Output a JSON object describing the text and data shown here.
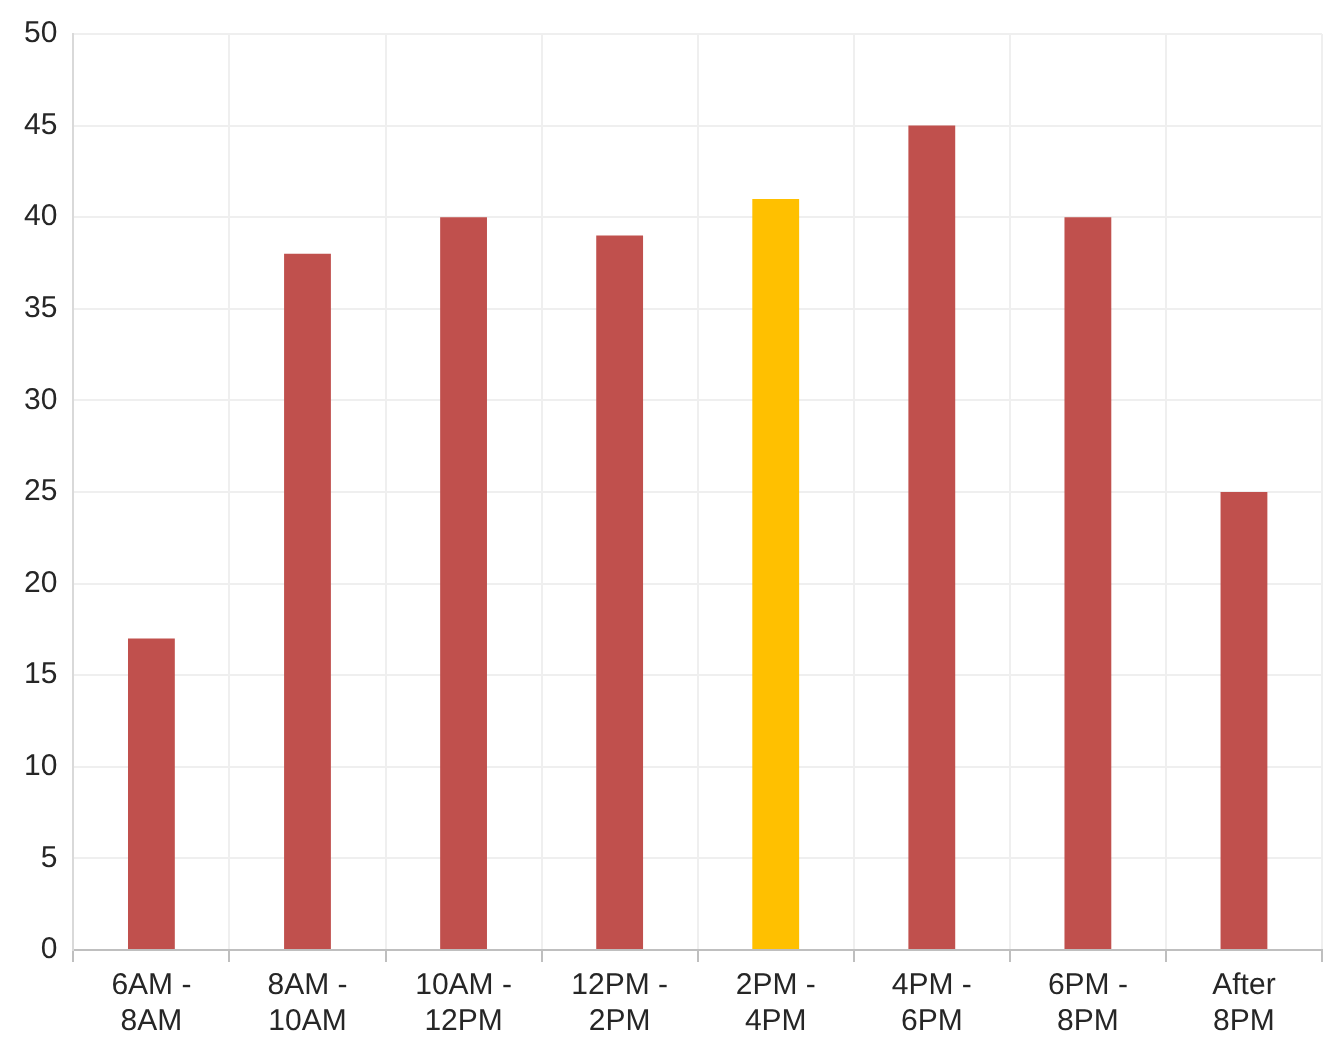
{
  "chart_data": {
    "type": "bar",
    "categories": [
      "6AM - 8AM",
      "8AM - 10AM",
      "10AM - 12PM",
      "12PM - 2PM",
      "2PM - 4PM",
      "4PM - 6PM",
      "6PM - 8PM",
      "After 8PM"
    ],
    "values": [
      17,
      38,
      40,
      39,
      41,
      45,
      40,
      25
    ],
    "colors": [
      "#c0504d",
      "#c0504d",
      "#c0504d",
      "#c0504d",
      "#ffc000",
      "#c0504d",
      "#c0504d",
      "#c0504d"
    ],
    "ylim": [
      0,
      50
    ],
    "yticks": [
      0,
      5,
      10,
      15,
      20,
      25,
      30,
      35,
      40,
      45,
      50
    ],
    "grid": true,
    "legend": false
  }
}
